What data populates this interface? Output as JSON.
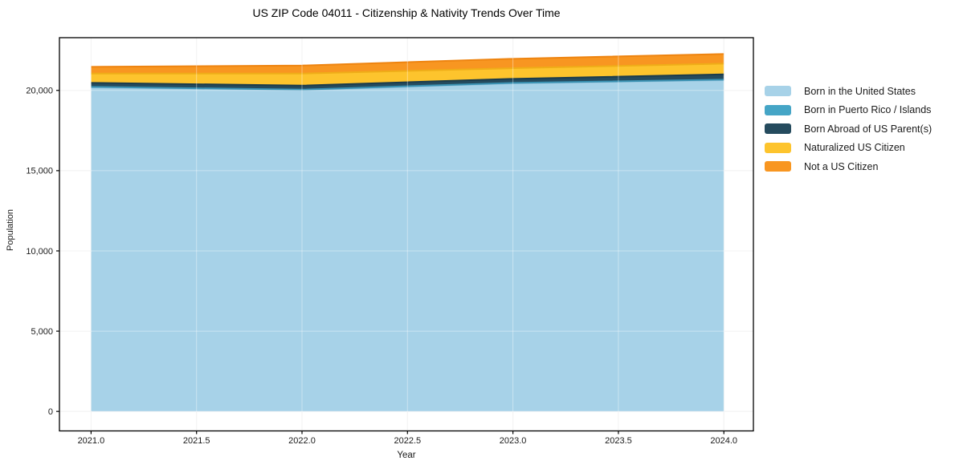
{
  "title": "US ZIP Code 04011 - Citizenship & Nativity Trends Over Time",
  "chart_data": {
    "type": "area",
    "stacked": true,
    "title": "US ZIP Code 04011 - Citizenship & Nativity Trends Over Time",
    "xlabel": "Year",
    "ylabel": "Population",
    "x": [
      2021,
      2022,
      2023,
      2024
    ],
    "series": [
      {
        "name": "Born in the United States",
        "color": "#a7d2e8",
        "edge_color": "#8fc0da",
        "values": [
          20190,
          20020,
          20440,
          20640
        ]
      },
      {
        "name": "Born in Puerto Rico / Islands",
        "color": "#45a5c6",
        "edge_color": "#3a92b3",
        "values": [
          30,
          30,
          30,
          30
        ]
      },
      {
        "name": "Born Abroad of US Parent(s)",
        "color": "#254b5e",
        "edge_color": "#1c3c4c",
        "values": [
          250,
          250,
          250,
          330
        ]
      },
      {
        "name": "Naturalized US Citizen",
        "color": "#fdc42d",
        "edge_color": "#efad18",
        "values": [
          580,
          750,
          665,
          670
        ]
      },
      {
        "name": "Not a US Citizen",
        "color": "#f89621",
        "edge_color": "#ee8410",
        "values": [
          420,
          500,
          585,
          600
        ]
      }
    ],
    "totals": [
      21470,
      21550,
      21970,
      22270
    ],
    "x_ticks": [
      2021.0,
      2021.5,
      2022.0,
      2022.5,
      2023.0,
      2023.5,
      2024.0
    ],
    "x_tick_labels": [
      "2021.0",
      "2021.5",
      "2022.0",
      "2022.5",
      "2023.0",
      "2023.5",
      "2024.0"
    ],
    "y_ticks": [
      0,
      5000,
      10000,
      15000,
      20000
    ],
    "y_tick_labels": [
      "0",
      "5,000",
      "10,000",
      "15,000",
      "20,000"
    ],
    "xlim": [
      2020.85,
      2024.14
    ],
    "ylim": [
      -1215,
      23285
    ],
    "grid": true,
    "grid_color": "#ebebeb",
    "frame_color": "#000000",
    "tick_label_color": "#1a1a1a",
    "legend_position": "right"
  }
}
